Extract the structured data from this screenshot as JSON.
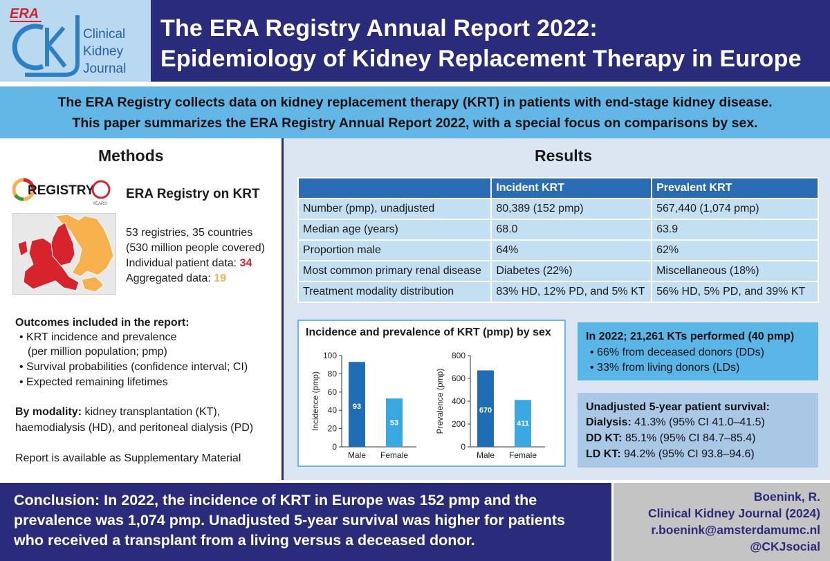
{
  "logo": {
    "era": "ERA",
    "ckj_line1": "Clinical",
    "ckj_line2": "Kidney",
    "ckj_line3": "Journal"
  },
  "title": {
    "line1": "The ERA Registry Annual Report 2022:",
    "line2": "Epidemiology of Kidney Replacement Therapy in Europe"
  },
  "intro": {
    "line1": "The ERA Registry collects data on kidney replacement therapy (KRT) in patients with end-stage kidney disease.",
    "line2": "This paper summarizes the ERA Registry Annual Report 2022, with a special focus on comparisons by sex."
  },
  "methods": {
    "heading": "Methods",
    "registry_logo_text": "REGISTRY",
    "registry_logo_years": "YEARS",
    "registry_title": "ERA Registry on KRT",
    "stats_line1": "53 registries, 35 countries",
    "stats_line2": "(530 million people covered)",
    "individual_label": "Individual patient data:",
    "individual_value": "34",
    "aggregated_label": "Aggregated data:",
    "aggregated_value": "19",
    "individual_color": "#d7232b",
    "aggregated_color": "#f6b14c",
    "outcomes_heading": "Outcomes included in the report:",
    "outcomes": [
      "KRT incidence and prevalence",
      "(per million population; pmp)",
      "Survival probabilities (confidence interval; CI)",
      "Expected remaining lifetimes"
    ],
    "modality_label": "By modality:",
    "modality_line1": "kidney transplantation (KT),",
    "modality_line2": "haemodialysis (HD), and peritoneal dialysis (PD)",
    "supplementary": "Report is available as Supplementary Material"
  },
  "results": {
    "heading": "Results",
    "table": {
      "headers": [
        "",
        "Incident KRT",
        "Prevalent KRT"
      ],
      "rows": [
        [
          "Number (pmp), unadjusted",
          "80,389 (152 pmp)",
          "567,440 (1,074 pmp)"
        ],
        [
          "Median age (years)",
          "68.0",
          "63.9"
        ],
        [
          "Proportion male",
          "64%",
          "62%"
        ],
        [
          "Most common primary renal disease",
          "Diabetes (22%)",
          "Miscellaneous (18%)"
        ],
        [
          "Treatment modality distribution",
          "83% HD, 12% PD, and 5% KT",
          "56% HD, 5% PD, and 39% KT"
        ]
      ]
    },
    "kt_box": {
      "heading": "In 2022; 21,261 KTs performed (40 pmp)",
      "items": [
        "66% from deceased donors (DDs)",
        "33% from living donors (LDs)"
      ]
    },
    "survival_box": {
      "heading": "Unadjusted 5-year patient survival:",
      "rows": [
        {
          "label": "Dialysis:",
          "value": "41.3% (95% CI 41.0–41.5)"
        },
        {
          "label": "DD KT:",
          "value": "85.1% (95% CI 84.7–85.4)"
        },
        {
          "label": "LD KT:",
          "value": "94.2% (95% CI 93.8–94.6)"
        }
      ]
    }
  },
  "conclusion": {
    "line1": "Conclusion: In 2022, the incidence of KRT in Europe was 152 pmp and the",
    "line2": "prevalence was 1,074 pmp. Unadjusted 5-year survival was higher for patients",
    "line3": "who received a transplant from a living versus a deceased donor."
  },
  "credit": {
    "author": "Boenink, R.",
    "journal": "Clinical Kidney Journal (2024)",
    "email": "r.boenink@amsterdamumc.nl",
    "social": "@CKJsocial"
  },
  "colors": {
    "navy": "#2a2b7a",
    "male_bar": "#1f6db5",
    "female_bar": "#3aa8e0"
  },
  "chart_data": {
    "title": "Incidence and prevalence of KRT (pmp) by sex",
    "charts": [
      {
        "type": "bar",
        "categories": [
          "Male",
          "Female"
        ],
        "values": [
          93,
          53
        ],
        "ylabel": "Incidence (pmp)",
        "ylim": [
          0,
          100
        ],
        "yticks": [
          0,
          20,
          40,
          60,
          80,
          100
        ]
      },
      {
        "type": "bar",
        "categories": [
          "Male",
          "Female"
        ],
        "values": [
          670,
          411
        ],
        "ylabel": "Prevalence (pmp)",
        "ylim": [
          0,
          800
        ],
        "yticks": [
          0,
          200,
          400,
          600,
          800
        ]
      }
    ]
  }
}
